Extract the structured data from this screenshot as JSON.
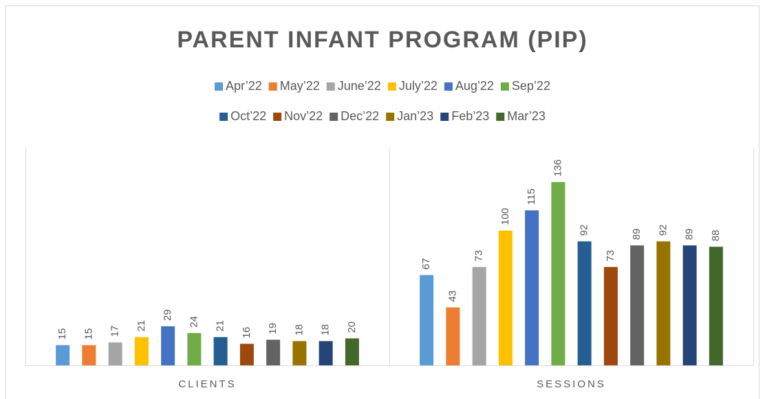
{
  "chart_data": {
    "type": "bar",
    "title": "PARENT INFANT PROGRAM (PIP)",
    "categories": [
      "CLIENTS",
      "SESSIONS"
    ],
    "ylim": [
      0,
      160
    ],
    "series": [
      {
        "name": "Apr’22",
        "color": "#5b9bd5",
        "values": [
          15,
          67
        ]
      },
      {
        "name": "May’22",
        "color": "#ed7d31",
        "values": [
          15,
          43
        ]
      },
      {
        "name": "June’22",
        "color": "#a5a5a5",
        "values": [
          17,
          73
        ]
      },
      {
        "name": "July’22",
        "color": "#ffc000",
        "values": [
          21,
          100
        ]
      },
      {
        "name": "Aug’22",
        "color": "#4472c4",
        "values": [
          29,
          115
        ]
      },
      {
        "name": "Sep’22",
        "color": "#70ad47",
        "values": [
          24,
          136
        ]
      },
      {
        "name": "Oct’22",
        "color": "#255e91",
        "values": [
          21,
          92
        ]
      },
      {
        "name": "Nov’22",
        "color": "#9e480e",
        "values": [
          16,
          73
        ]
      },
      {
        "name": "Dec’22",
        "color": "#636363",
        "values": [
          19,
          89
        ]
      },
      {
        "name": "Jan’23",
        "color": "#997300",
        "values": [
          18,
          92
        ]
      },
      {
        "name": "Feb’23",
        "color": "#264478",
        "values": [
          18,
          89
        ]
      },
      {
        "name": "Mar’23",
        "color": "#43682b",
        "values": [
          20,
          88
        ]
      }
    ]
  }
}
